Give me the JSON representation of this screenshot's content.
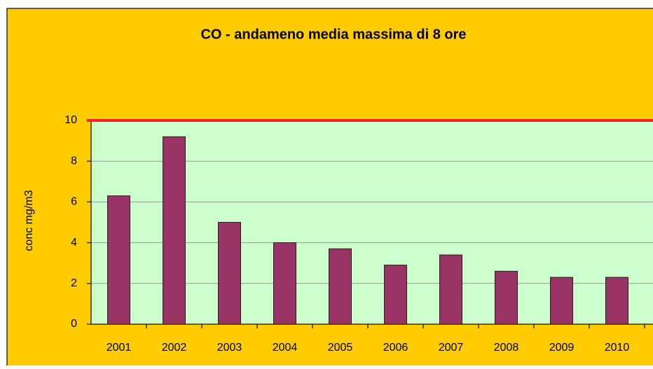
{
  "chart_data": {
    "type": "bar",
    "title": "CO - andameno media massima di 8 ore",
    "y_label": "conc mg/m3",
    "categories": [
      "2001",
      "2002",
      "2003",
      "2004",
      "2005",
      "2006",
      "2007",
      "2008",
      "2009",
      "2010"
    ],
    "values": [
      6.3,
      9.2,
      5.0,
      4.0,
      3.7,
      2.9,
      3.4,
      2.6,
      2.3,
      2.3
    ],
    "color": "#993366",
    "threshold": 10,
    "threshold_color": "#ff2020",
    "ylim": [
      0,
      10
    ],
    "yticks": [
      0,
      2,
      4,
      6,
      8,
      10
    ],
    "grid": true
  }
}
